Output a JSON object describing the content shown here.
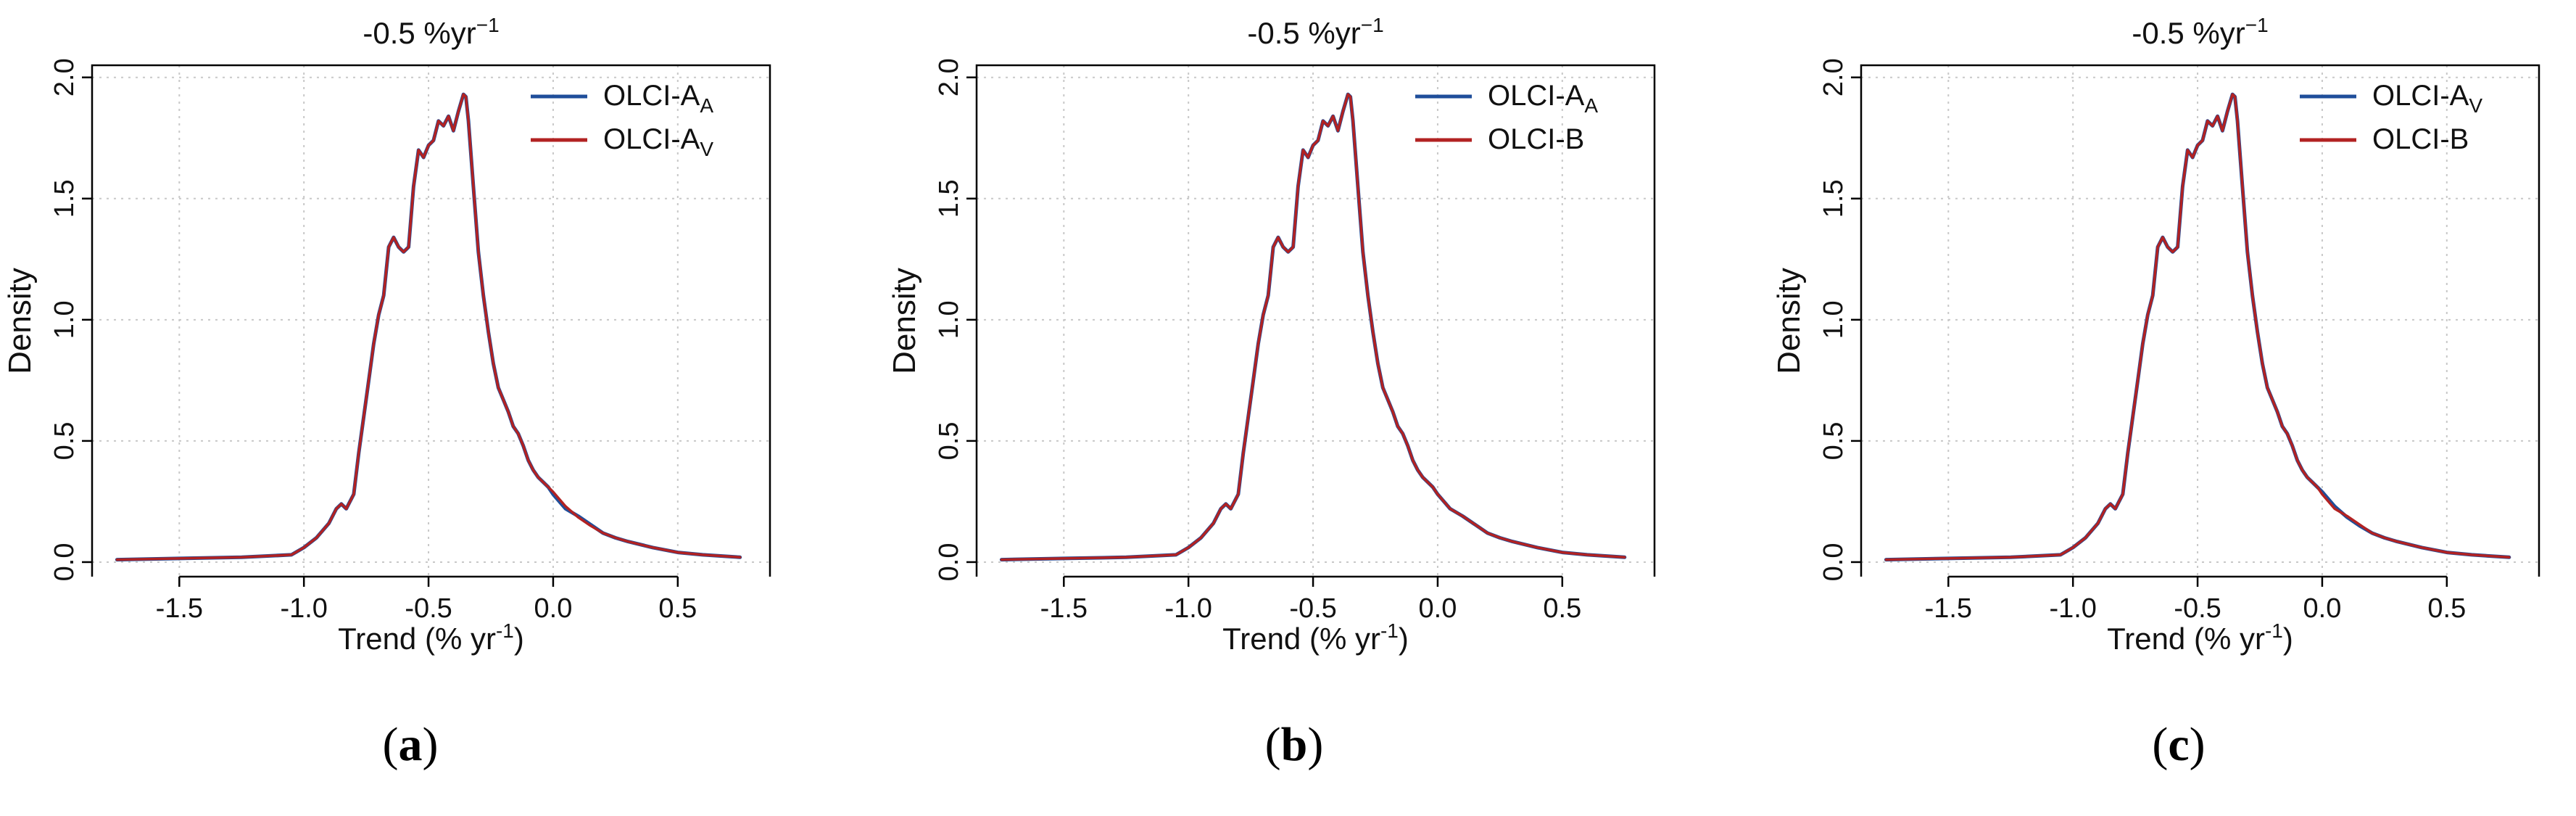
{
  "figure": {
    "panel_labels": [
      {
        "open": "(",
        "letter": "a",
        "close": ")"
      },
      {
        "open": "(",
        "letter": "b",
        "close": ")"
      },
      {
        "open": "(",
        "letter": "c",
        "close": ")"
      }
    ]
  },
  "colors": {
    "series_blue": "#1f4e9a",
    "series_red": "#b22222",
    "grid": "#c8c8c8",
    "axis": "#000000"
  },
  "chart_data": [
    {
      "type": "line",
      "title": "-0.5 %yr",
      "title_sup": "−1",
      "xlabel": "Trend (% yr",
      "xlabel_sup": "-1",
      "xlabel_close": ")",
      "ylabel": "Density",
      "xlim": [
        -1.85,
        0.87
      ],
      "ylim": [
        -0.06,
        2.05
      ],
      "xticks": [
        -1.5,
        -1.0,
        -0.5,
        0.0,
        0.5
      ],
      "xtick_labels": [
        "-1.5",
        "-1.0",
        "-0.5",
        "0.0",
        "0.5"
      ],
      "yticks": [
        0.0,
        0.5,
        1.0,
        1.5,
        2.0
      ],
      "ytick_labels": [
        "0.0",
        "0.5",
        "1.0",
        "1.5",
        "2.0"
      ],
      "grid": true,
      "legend_position": "top-right",
      "x": [
        -1.75,
        -1.5,
        -1.25,
        -1.05,
        -1.0,
        -0.95,
        -0.9,
        -0.87,
        -0.85,
        -0.83,
        -0.8,
        -0.78,
        -0.76,
        -0.74,
        -0.72,
        -0.7,
        -0.68,
        -0.66,
        -0.64,
        -0.62,
        -0.6,
        -0.58,
        -0.56,
        -0.54,
        -0.52,
        -0.5,
        -0.48,
        -0.46,
        -0.44,
        -0.42,
        -0.4,
        -0.38,
        -0.36,
        -0.35,
        -0.34,
        -0.32,
        -0.3,
        -0.28,
        -0.26,
        -0.24,
        -0.22,
        -0.2,
        -0.18,
        -0.16,
        -0.14,
        -0.12,
        -0.1,
        -0.08,
        -0.06,
        -0.04,
        -0.02,
        0.0,
        0.05,
        0.1,
        0.15,
        0.2,
        0.25,
        0.3,
        0.4,
        0.5,
        0.6,
        0.75
      ],
      "series": [
        {
          "name": "OLCI-A",
          "name_sub": "A",
          "color": "#1f4e9a",
          "values": [
            0.01,
            0.015,
            0.02,
            0.03,
            0.06,
            0.1,
            0.16,
            0.22,
            0.24,
            0.22,
            0.28,
            0.45,
            0.6,
            0.75,
            0.9,
            1.02,
            1.1,
            1.3,
            1.34,
            1.3,
            1.28,
            1.3,
            1.55,
            1.7,
            1.67,
            1.72,
            1.74,
            1.82,
            1.8,
            1.84,
            1.78,
            1.86,
            1.93,
            1.92,
            1.82,
            1.55,
            1.28,
            1.1,
            0.95,
            0.82,
            0.72,
            0.67,
            0.62,
            0.56,
            0.53,
            0.48,
            0.42,
            0.38,
            0.35,
            0.33,
            0.31,
            0.28,
            0.22,
            0.19,
            0.155,
            0.12,
            0.1,
            0.085,
            0.06,
            0.04,
            0.03,
            0.02
          ]
        },
        {
          "name": "OLCI-A",
          "name_sub": "V",
          "color": "#b22222",
          "values": [
            0.01,
            0.015,
            0.02,
            0.03,
            0.06,
            0.1,
            0.16,
            0.22,
            0.24,
            0.22,
            0.28,
            0.45,
            0.6,
            0.75,
            0.9,
            1.02,
            1.1,
            1.3,
            1.34,
            1.3,
            1.28,
            1.3,
            1.55,
            1.7,
            1.67,
            1.72,
            1.74,
            1.82,
            1.8,
            1.84,
            1.78,
            1.86,
            1.93,
            1.92,
            1.82,
            1.55,
            1.28,
            1.1,
            0.95,
            0.82,
            0.72,
            0.67,
            0.62,
            0.56,
            0.53,
            0.48,
            0.42,
            0.38,
            0.35,
            0.33,
            0.31,
            0.29,
            0.23,
            0.185,
            0.15,
            0.12,
            0.1,
            0.085,
            0.06,
            0.04,
            0.03,
            0.02
          ]
        }
      ]
    },
    {
      "type": "line",
      "title": "-0.5 %yr",
      "title_sup": "−1",
      "xlabel": "Trend (% yr",
      "xlabel_sup": "-1",
      "xlabel_close": ")",
      "ylabel": "Density",
      "xlim": [
        -1.85,
        0.87
      ],
      "ylim": [
        -0.06,
        2.05
      ],
      "xticks": [
        -1.5,
        -1.0,
        -0.5,
        0.0,
        0.5
      ],
      "xtick_labels": [
        "-1.5",
        "-1.0",
        "-0.5",
        "0.0",
        "0.5"
      ],
      "yticks": [
        0.0,
        0.5,
        1.0,
        1.5,
        2.0
      ],
      "ytick_labels": [
        "0.0",
        "0.5",
        "1.0",
        "1.5",
        "2.0"
      ],
      "grid": true,
      "legend_position": "top-right",
      "x": [
        -1.75,
        -1.5,
        -1.25,
        -1.05,
        -1.0,
        -0.95,
        -0.9,
        -0.87,
        -0.85,
        -0.83,
        -0.8,
        -0.78,
        -0.76,
        -0.74,
        -0.72,
        -0.7,
        -0.68,
        -0.66,
        -0.64,
        -0.62,
        -0.6,
        -0.58,
        -0.56,
        -0.54,
        -0.52,
        -0.5,
        -0.48,
        -0.46,
        -0.44,
        -0.42,
        -0.4,
        -0.38,
        -0.36,
        -0.35,
        -0.34,
        -0.32,
        -0.3,
        -0.28,
        -0.26,
        -0.24,
        -0.22,
        -0.2,
        -0.18,
        -0.16,
        -0.14,
        -0.12,
        -0.1,
        -0.08,
        -0.06,
        -0.04,
        -0.02,
        0.0,
        0.05,
        0.1,
        0.15,
        0.2,
        0.25,
        0.3,
        0.4,
        0.5,
        0.6,
        0.75
      ],
      "series": [
        {
          "name": "OLCI-A",
          "name_sub": "A",
          "color": "#1f4e9a",
          "values": [
            0.01,
            0.015,
            0.02,
            0.03,
            0.06,
            0.1,
            0.16,
            0.22,
            0.24,
            0.22,
            0.28,
            0.45,
            0.6,
            0.75,
            0.9,
            1.02,
            1.1,
            1.3,
            1.34,
            1.3,
            1.28,
            1.3,
            1.55,
            1.7,
            1.67,
            1.72,
            1.74,
            1.82,
            1.8,
            1.84,
            1.78,
            1.86,
            1.93,
            1.92,
            1.82,
            1.55,
            1.28,
            1.1,
            0.95,
            0.82,
            0.72,
            0.67,
            0.62,
            0.56,
            0.53,
            0.48,
            0.42,
            0.38,
            0.35,
            0.33,
            0.31,
            0.28,
            0.22,
            0.19,
            0.155,
            0.12,
            0.1,
            0.085,
            0.06,
            0.04,
            0.03,
            0.02
          ]
        },
        {
          "name": "OLCI-B",
          "name_sub": "",
          "color": "#b22222",
          "values": [
            0.01,
            0.015,
            0.02,
            0.03,
            0.06,
            0.1,
            0.16,
            0.22,
            0.24,
            0.22,
            0.28,
            0.45,
            0.6,
            0.75,
            0.9,
            1.02,
            1.1,
            1.3,
            1.34,
            1.3,
            1.28,
            1.3,
            1.55,
            1.7,
            1.67,
            1.72,
            1.74,
            1.82,
            1.8,
            1.84,
            1.78,
            1.86,
            1.93,
            1.92,
            1.82,
            1.55,
            1.28,
            1.1,
            0.95,
            0.82,
            0.72,
            0.67,
            0.62,
            0.56,
            0.53,
            0.48,
            0.42,
            0.38,
            0.35,
            0.33,
            0.31,
            0.28,
            0.22,
            0.19,
            0.155,
            0.12,
            0.1,
            0.085,
            0.06,
            0.04,
            0.03,
            0.02
          ]
        }
      ]
    },
    {
      "type": "line",
      "title": "-0.5 %yr",
      "title_sup": "−1",
      "xlabel": "Trend (% yr",
      "xlabel_sup": "-1",
      "xlabel_close": ")",
      "ylabel": "Density",
      "xlim": [
        -1.85,
        0.87
      ],
      "ylim": [
        -0.06,
        2.05
      ],
      "xticks": [
        -1.5,
        -1.0,
        -0.5,
        0.0,
        0.5
      ],
      "xtick_labels": [
        "-1.5",
        "-1.0",
        "-0.5",
        "0.0",
        "0.5"
      ],
      "yticks": [
        0.0,
        0.5,
        1.0,
        1.5,
        2.0
      ],
      "ytick_labels": [
        "0.0",
        "0.5",
        "1.0",
        "1.5",
        "2.0"
      ],
      "grid": true,
      "legend_position": "top-right",
      "x": [
        -1.75,
        -1.5,
        -1.25,
        -1.05,
        -1.0,
        -0.95,
        -0.9,
        -0.87,
        -0.85,
        -0.83,
        -0.8,
        -0.78,
        -0.76,
        -0.74,
        -0.72,
        -0.7,
        -0.68,
        -0.66,
        -0.64,
        -0.62,
        -0.6,
        -0.58,
        -0.56,
        -0.54,
        -0.52,
        -0.5,
        -0.48,
        -0.46,
        -0.44,
        -0.42,
        -0.4,
        -0.38,
        -0.36,
        -0.35,
        -0.34,
        -0.32,
        -0.3,
        -0.28,
        -0.26,
        -0.24,
        -0.22,
        -0.2,
        -0.18,
        -0.16,
        -0.14,
        -0.12,
        -0.1,
        -0.08,
        -0.06,
        -0.04,
        -0.02,
        0.0,
        0.05,
        0.1,
        0.15,
        0.2,
        0.25,
        0.3,
        0.4,
        0.5,
        0.6,
        0.75
      ],
      "series": [
        {
          "name": "OLCI-A",
          "name_sub": "V",
          "color": "#1f4e9a",
          "values": [
            0.01,
            0.015,
            0.02,
            0.03,
            0.06,
            0.1,
            0.16,
            0.22,
            0.24,
            0.22,
            0.28,
            0.45,
            0.6,
            0.75,
            0.9,
            1.02,
            1.1,
            1.3,
            1.34,
            1.3,
            1.28,
            1.3,
            1.55,
            1.7,
            1.67,
            1.72,
            1.74,
            1.82,
            1.8,
            1.84,
            1.78,
            1.86,
            1.93,
            1.92,
            1.82,
            1.55,
            1.28,
            1.1,
            0.95,
            0.82,
            0.72,
            0.67,
            0.62,
            0.56,
            0.53,
            0.48,
            0.42,
            0.38,
            0.35,
            0.33,
            0.31,
            0.29,
            0.23,
            0.185,
            0.15,
            0.12,
            0.1,
            0.085,
            0.06,
            0.04,
            0.03,
            0.02
          ]
        },
        {
          "name": "OLCI-B",
          "name_sub": "",
          "color": "#b22222",
          "values": [
            0.01,
            0.015,
            0.02,
            0.03,
            0.06,
            0.1,
            0.16,
            0.22,
            0.24,
            0.22,
            0.28,
            0.45,
            0.6,
            0.75,
            0.9,
            1.02,
            1.1,
            1.3,
            1.34,
            1.3,
            1.28,
            1.3,
            1.55,
            1.7,
            1.67,
            1.72,
            1.74,
            1.82,
            1.8,
            1.84,
            1.78,
            1.86,
            1.93,
            1.92,
            1.82,
            1.55,
            1.28,
            1.1,
            0.95,
            0.82,
            0.72,
            0.67,
            0.62,
            0.56,
            0.53,
            0.48,
            0.42,
            0.38,
            0.35,
            0.33,
            0.31,
            0.28,
            0.22,
            0.19,
            0.155,
            0.12,
            0.1,
            0.085,
            0.06,
            0.04,
            0.03,
            0.02
          ]
        }
      ]
    }
  ]
}
